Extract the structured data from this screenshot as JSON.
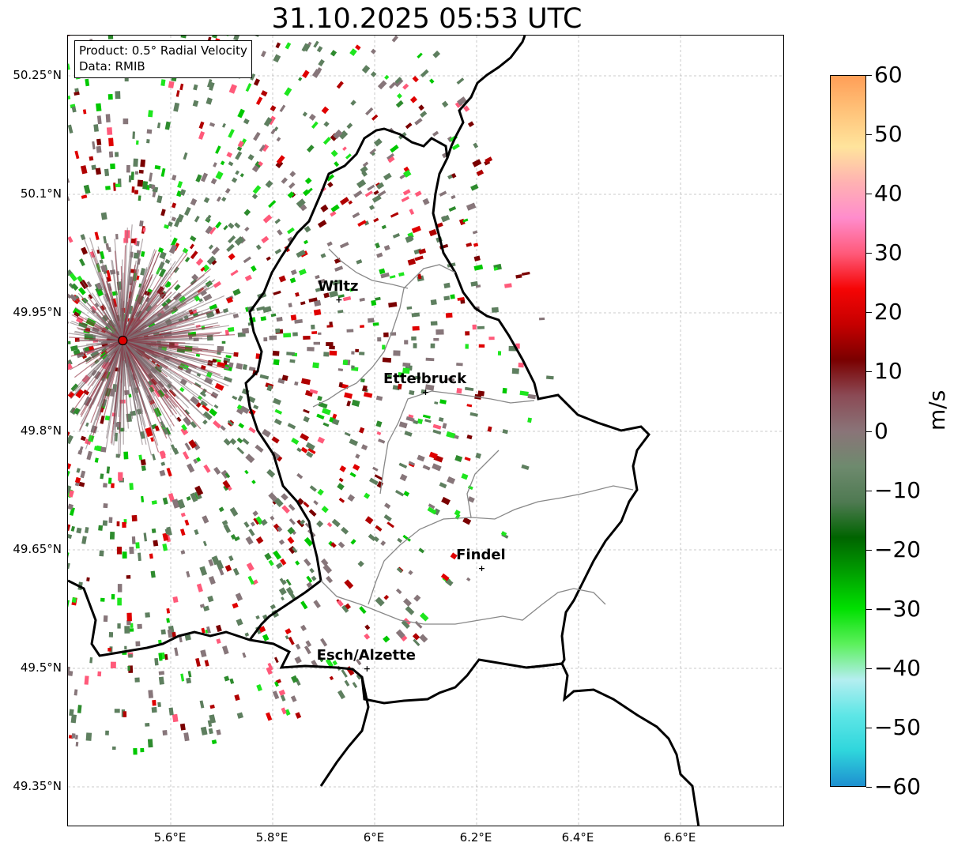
{
  "title": "31.10.2025 05:53 UTC",
  "info": {
    "product": "Product: 0.5° Radial Velocity",
    "data": "Data: RMIB"
  },
  "axes": {
    "lat_labels": [
      "50.25°N",
      "50.1°N",
      "49.95°N",
      "49.8°N",
      "49.65°N",
      "49.5°N",
      "49.35°N"
    ],
    "lat_values": [
      50.25,
      50.1,
      49.95,
      49.8,
      49.65,
      49.5,
      49.35
    ],
    "lon_labels": [
      "5.6°E",
      "5.8°E",
      "6°E",
      "6.2°E",
      "6.4°E",
      "6.6°E"
    ],
    "lon_values": [
      5.6,
      5.8,
      6.0,
      6.2,
      6.4,
      6.6
    ]
  },
  "cities": [
    {
      "name": "Wiltz",
      "lon": 5.93,
      "lat": 49.967
    },
    {
      "name": "Ettelbruck",
      "lon": 6.1,
      "lat": 49.85
    },
    {
      "name": "Findel",
      "lon": 6.21,
      "lat": 49.627
    },
    {
      "name": "Esch/Alzette",
      "lon": 5.985,
      "lat": 49.5
    }
  ],
  "radar_site": {
    "lon": 5.506,
    "lat": 49.915
  },
  "colorbar": {
    "unit": "m/s",
    "min": -60,
    "max": 60,
    "tick_labels": [
      "60",
      "50",
      "40",
      "30",
      "20",
      "10",
      "0",
      "−10",
      "−20",
      "−30",
      "−40",
      "−50",
      "−60"
    ],
    "tick_values": [
      60,
      50,
      40,
      30,
      20,
      10,
      0,
      -10,
      -20,
      -30,
      -40,
      -50,
      -60
    ],
    "colors_top_to_bottom": [
      "#ff9e57",
      "#ffc37a",
      "#ffe49c",
      "#ffb2b2",
      "#ff8ccc",
      "#ff5a7a",
      "#f50505",
      "#c60000",
      "#7a0000",
      "#8b4a55",
      "#8a7478",
      "#6e8a6e",
      "#4f7a52",
      "#006400",
      "#00a000",
      "#00e000",
      "#5cf05c",
      "#b4eef0",
      "#5ee6e6",
      "#2fd6dc",
      "#1e90d0"
    ]
  }
}
